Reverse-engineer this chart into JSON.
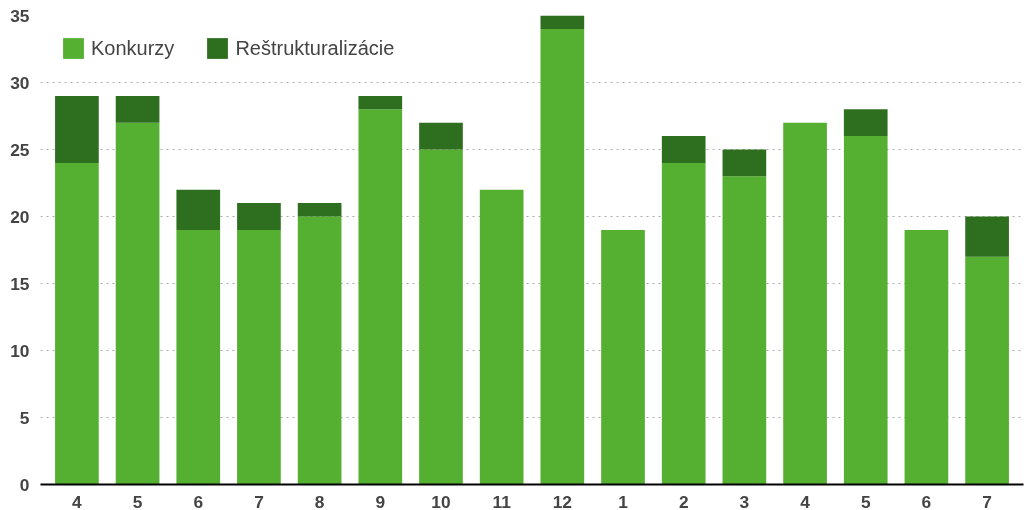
{
  "chart_data": {
    "type": "bar",
    "stacked": true,
    "categories": [
      "4",
      "5",
      "6",
      "7",
      "8",
      "9",
      "10",
      "11",
      "12",
      "1",
      "2",
      "3",
      "4",
      "5",
      "6",
      "7"
    ],
    "series": [
      {
        "name": "Konkurzy",
        "color": "#55b032",
        "values": [
          24,
          27,
          19,
          19,
          20,
          28,
          25,
          22,
          34,
          19,
          24,
          23,
          27,
          26,
          19,
          17
        ]
      },
      {
        "name": "Reštrukturalizácie",
        "color": "#2e6e1f",
        "values": [
          5,
          2,
          3,
          2,
          1,
          1,
          2,
          0,
          1,
          0,
          2,
          2,
          0,
          2,
          0,
          3
        ]
      }
    ],
    "ylim": [
      0,
      35
    ],
    "yticks": [
      0,
      5,
      10,
      15,
      20,
      25,
      30,
      35
    ],
    "grid": "y",
    "legend": "top left"
  }
}
